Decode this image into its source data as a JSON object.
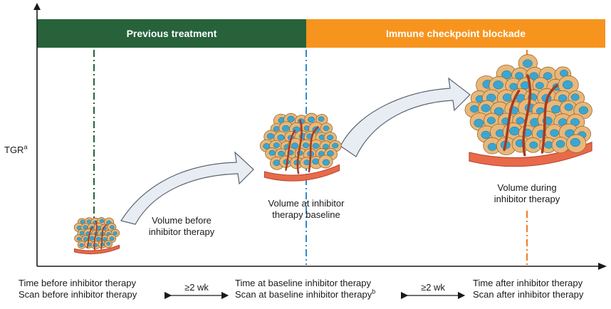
{
  "axis": {
    "y_label": "TGR",
    "y_label_sup": "a"
  },
  "phases": {
    "previous": {
      "label": "Previous treatment",
      "color": "#27623a"
    },
    "blockade": {
      "label": "Immune checkpoint blockade",
      "color": "#f7941d"
    }
  },
  "tumors": {
    "before": {
      "label_line1": "Volume before",
      "label_line2": "inhibitor therapy"
    },
    "baseline": {
      "label_line1": "Volume at inhibitor",
      "label_line2": "therapy baseline"
    },
    "during": {
      "label_line1": "Volume during",
      "label_line2": "inhibitor therapy"
    }
  },
  "timeline": {
    "before": {
      "line1": "Time before inhibitor therapy",
      "line2": "Scan before inhibitor therapy"
    },
    "baseline": {
      "line1": "Time at baseline inhibitor therapy",
      "line2": "Scan at baseline inhibitor therapy",
      "line2_sup": "b"
    },
    "after": {
      "line1": "Time after inhibitor therapy",
      "line2": "Scan after inhibitor therapy"
    },
    "interval1": "≥2 wk",
    "interval2": "≥2 wk"
  },
  "colors": {
    "cell_fill": "#e8b77a",
    "cell_stroke": "#9c6a2e",
    "nucleus": "#3aa6d0",
    "vessel": "#a83a20",
    "base": "#e86a4a",
    "arrow_fill": "#e8edf3",
    "arrow_stroke": "#5a6470",
    "dash_green": "#27623a",
    "dash_blue": "#2e8bc9",
    "dash_orange": "#f47a20"
  }
}
